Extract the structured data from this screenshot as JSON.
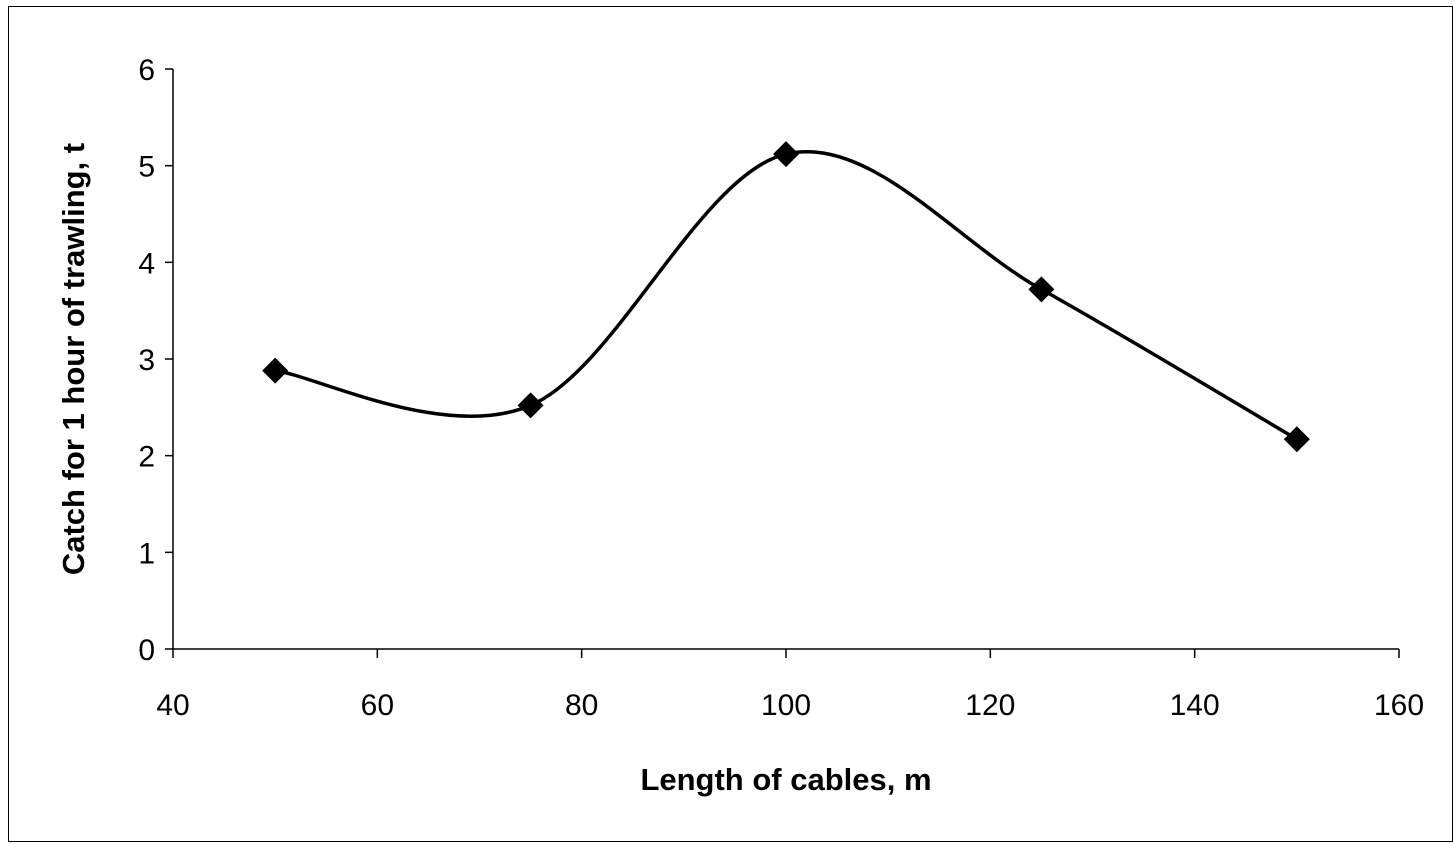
{
  "chart_data": {
    "type": "line",
    "title": "",
    "xlabel": "Length of cables, m",
    "ylabel": "Catch for 1 hour of trawling, t",
    "xlim": [
      40,
      160
    ],
    "ylim": [
      0,
      6
    ],
    "x_ticks": [
      40,
      60,
      80,
      100,
      120,
      140,
      160
    ],
    "y_ticks": [
      0,
      1,
      2,
      3,
      4,
      5,
      6
    ],
    "x_tick_labels": [
      "40",
      "60",
      "80",
      "100",
      "120",
      "140",
      "160"
    ],
    "y_tick_labels": [
      "0",
      "1",
      "2",
      "3",
      "4",
      "5",
      "6"
    ],
    "grid": false,
    "legend": "none",
    "smooth": true,
    "series": [
      {
        "x": [
          50,
          75,
          100,
          125,
          150
        ],
        "y": [
          2.88,
          2.52,
          5.12,
          3.72,
          2.17
        ],
        "marker": "diamond",
        "color": "#000000"
      }
    ]
  }
}
